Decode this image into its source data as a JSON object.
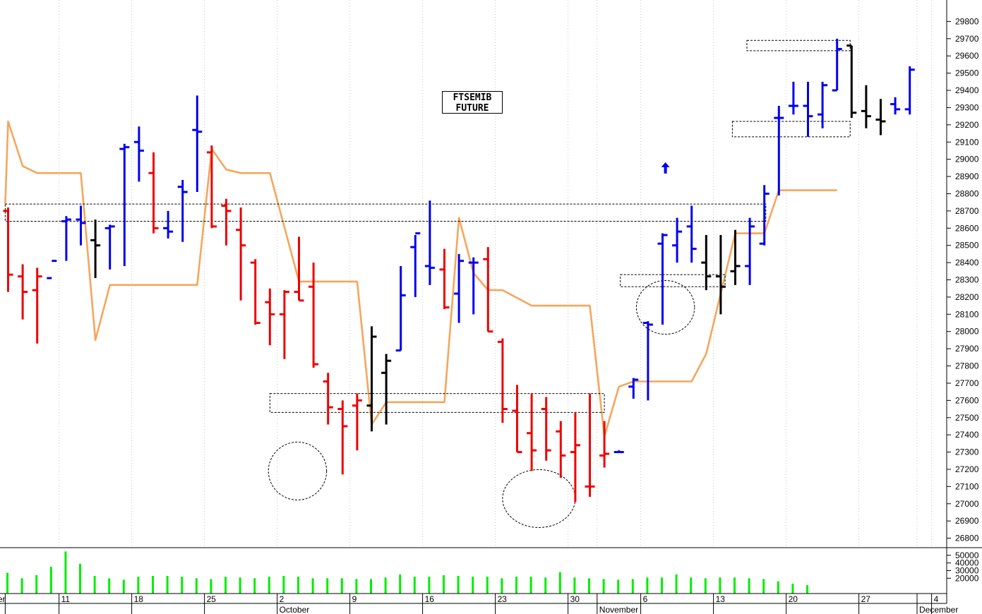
{
  "chart_data": {
    "type": "ohlc",
    "title": "FTSEMIB",
    "subtitle": "FUTURE",
    "price_axis": {
      "ylim": [
        26700,
        29900
      ],
      "ticks": [
        26800,
        26900,
        27000,
        27100,
        27200,
        27300,
        27400,
        27500,
        27600,
        27700,
        27800,
        27900,
        28000,
        28100,
        28200,
        28300,
        28400,
        28500,
        28600,
        28700,
        28800,
        28900,
        29000,
        29100,
        29200,
        29300,
        29400,
        29500,
        29600,
        29700,
        29800
      ],
      "grid": true
    },
    "volume_axis": {
      "ylim": [
        0,
        60000
      ],
      "ticks": [
        "20000",
        "30000",
        "40000",
        "50000"
      ]
    },
    "x_axis": {
      "labels": [
        {
          "text": "er",
          "slot": -0.2
        },
        {
          "text": "11",
          "slot": 3.5
        },
        {
          "text": "18",
          "slot": 8.5
        },
        {
          "text": "25",
          "slot": 13.5
        },
        {
          "text": "2",
          "slot": 18.5
        },
        {
          "text": "October",
          "slot": 18.5
        },
        {
          "text": "9",
          "slot": 23.5
        },
        {
          "text": "16",
          "slot": 28.5
        },
        {
          "text": "23",
          "slot": 33.5
        },
        {
          "text": "30",
          "slot": 38.5
        },
        {
          "text": "November",
          "slot": 40.5
        },
        {
          "text": "6",
          "slot": 43.5
        },
        {
          "text": "13",
          "slot": 48.5
        },
        {
          "text": "20",
          "slot": 53.5
        },
        {
          "text": "27",
          "slot": 58.5
        },
        {
          "text": "4",
          "slot": 63.5
        },
        {
          "text": "December",
          "slot": 62.5
        }
      ],
      "separators": [
        -0.2,
        3.5,
        8.5,
        13.5,
        18.5,
        23.5,
        28.5,
        33.5,
        38.5,
        40.5,
        43.5,
        48.5,
        53.5,
        58.5,
        62.5,
        63.5
      ]
    },
    "colors": {
      "up": "#0000ee",
      "down": "#ee0000",
      "neutral": "#000000",
      "stop_line": "#f5a65b",
      "volume": "#00ee00",
      "grid": "#c8c8c8",
      "annotation": "#000000"
    },
    "bars": [
      {
        "o": 28700,
        "h": 28720,
        "l": 28230,
        "c": 28330,
        "color": "red"
      },
      {
        "o": 28320,
        "h": 28390,
        "l": 28070,
        "c": 28230,
        "color": "red"
      },
      {
        "o": 28240,
        "h": 28370,
        "l": 27930,
        "c": 28320,
        "color": "red"
      },
      {
        "o": 28310,
        "h": 28410,
        "l": 28410,
        "c": 28410,
        "color": "blue"
      },
      {
        "o": 28640,
        "h": 28670,
        "l": 28410,
        "c": 28650,
        "color": "blue"
      },
      {
        "o": 28650,
        "h": 28730,
        "l": 28500,
        "c": 28630,
        "color": "blue"
      },
      {
        "o": 28530,
        "h": 28650,
        "l": 28310,
        "c": 28500,
        "color": "black"
      },
      {
        "o": 28600,
        "h": 28620,
        "l": 28360,
        "c": 28610,
        "color": "blue"
      },
      {
        "o": 29060,
        "h": 29090,
        "l": 28380,
        "c": 29070,
        "color": "blue"
      },
      {
        "o": 29100,
        "h": 29190,
        "l": 28870,
        "c": 29050,
        "color": "blue"
      },
      {
        "o": 28920,
        "h": 29040,
        "l": 28570,
        "c": 28600,
        "color": "red"
      },
      {
        "o": 28600,
        "h": 28700,
        "l": 28540,
        "c": 28580,
        "color": "blue"
      },
      {
        "o": 28840,
        "h": 28880,
        "l": 28520,
        "c": 28810,
        "color": "blue"
      },
      {
        "o": 29170,
        "h": 29370,
        "l": 28810,
        "c": 29160,
        "color": "blue"
      },
      {
        "o": 29040,
        "h": 29080,
        "l": 28600,
        "c": 28610,
        "color": "red"
      },
      {
        "o": 28730,
        "h": 28770,
        "l": 28500,
        "c": 28700,
        "color": "red"
      },
      {
        "o": 28590,
        "h": 28720,
        "l": 28180,
        "c": 28500,
        "color": "red"
      },
      {
        "o": 28400,
        "h": 28420,
        "l": 28040,
        "c": 28050,
        "color": "red"
      },
      {
        "o": 28170,
        "h": 28250,
        "l": 27920,
        "c": 28100,
        "color": "red"
      },
      {
        "o": 28100,
        "h": 28240,
        "l": 27840,
        "c": 28230,
        "color": "red"
      },
      {
        "o": 28230,
        "h": 28550,
        "l": 28180,
        "c": 28180,
        "color": "red"
      },
      {
        "o": 28260,
        "h": 28400,
        "l": 27790,
        "c": 27810,
        "color": "red"
      },
      {
        "o": 27710,
        "h": 27760,
        "l": 27460,
        "c": 27560,
        "color": "red"
      },
      {
        "o": 27550,
        "h": 27600,
        "l": 27170,
        "c": 27450,
        "color": "red"
      },
      {
        "o": 27570,
        "h": 27640,
        "l": 27310,
        "c": 27600,
        "color": "red"
      },
      {
        "o": 27570,
        "h": 28030,
        "l": 27420,
        "c": 27970,
        "color": "black"
      },
      {
        "o": 27760,
        "h": 27870,
        "l": 27460,
        "c": 27830,
        "color": "black"
      },
      {
        "o": 27890,
        "h": 28380,
        "l": 27890,
        "c": 28210,
        "color": "blue"
      },
      {
        "o": 28490,
        "h": 28560,
        "l": 28200,
        "c": 28570,
        "color": "blue"
      },
      {
        "o": 28380,
        "h": 28760,
        "l": 28270,
        "c": 28370,
        "color": "blue"
      },
      {
        "o": 28360,
        "h": 28480,
        "l": 28130,
        "c": 28140,
        "color": "red"
      },
      {
        "o": 28220,
        "h": 28450,
        "l": 28050,
        "c": 28410,
        "color": "blue"
      },
      {
        "o": 28400,
        "h": 28430,
        "l": 28100,
        "c": 28400,
        "color": "blue"
      },
      {
        "o": 28420,
        "h": 28490,
        "l": 28000,
        "c": 28000,
        "color": "red"
      },
      {
        "o": 27940,
        "h": 27960,
        "l": 27470,
        "c": 27550,
        "color": "red"
      },
      {
        "o": 27540,
        "h": 27690,
        "l": 27300,
        "c": 27300,
        "color": "red"
      },
      {
        "o": 27410,
        "h": 27640,
        "l": 27190,
        "c": 27310,
        "color": "red"
      },
      {
        "o": 27550,
        "h": 27620,
        "l": 27250,
        "c": 27310,
        "color": "red"
      },
      {
        "o": 27420,
        "h": 27480,
        "l": 27150,
        "c": 27280,
        "color": "red"
      },
      {
        "o": 27300,
        "h": 27530,
        "l": 27010,
        "c": 27340,
        "color": "red"
      },
      {
        "o": 27100,
        "h": 27640,
        "l": 27040,
        "c": 27100,
        "color": "red"
      },
      {
        "o": 27280,
        "h": 27480,
        "l": 27210,
        "c": 27290,
        "color": "red"
      },
      {
        "o": 27300,
        "h": 27310,
        "l": 27300,
        "c": 27300,
        "color": "blue"
      },
      {
        "o": 27680,
        "h": 27730,
        "l": 27610,
        "c": 27720,
        "color": "blue"
      },
      {
        "o": 28050,
        "h": 28060,
        "l": 27600,
        "c": 28040,
        "color": "blue"
      },
      {
        "o": 28510,
        "h": 28570,
        "l": 28040,
        "c": 28560,
        "color": "blue"
      },
      {
        "o": 28500,
        "h": 28660,
        "l": 28400,
        "c": 28580,
        "color": "blue"
      },
      {
        "o": 28610,
        "h": 28730,
        "l": 28400,
        "c": 28480,
        "color": "blue"
      },
      {
        "o": 28400,
        "h": 28560,
        "l": 28240,
        "c": 28320,
        "color": "black"
      },
      {
        "o": 28320,
        "h": 28560,
        "l": 28100,
        "c": 28260,
        "color": "black"
      },
      {
        "o": 28350,
        "h": 28590,
        "l": 28270,
        "c": 28380,
        "color": "black"
      },
      {
        "o": 28380,
        "h": 28660,
        "l": 28270,
        "c": 28610,
        "color": "blue"
      },
      {
        "o": 28510,
        "h": 28850,
        "l": 28500,
        "c": 28800,
        "color": "blue"
      },
      {
        "o": 29240,
        "h": 29310,
        "l": 28790,
        "c": 29240,
        "color": "blue"
      },
      {
        "o": 29310,
        "h": 29450,
        "l": 29260,
        "c": 29310,
        "color": "blue"
      },
      {
        "o": 29310,
        "h": 29450,
        "l": 29130,
        "c": 29250,
        "color": "blue"
      },
      {
        "o": 29260,
        "h": 29450,
        "l": 29180,
        "c": 29430,
        "color": "blue"
      },
      {
        "o": 29400,
        "h": 29700,
        "l": 29400,
        "c": 29640,
        "color": "blue"
      },
      {
        "o": 29660,
        "h": 29660,
        "l": 29240,
        "c": 29270,
        "color": "black"
      },
      {
        "o": 29280,
        "h": 29430,
        "l": 29180,
        "c": 29250,
        "color": "black"
      },
      {
        "o": 29230,
        "h": 29350,
        "l": 29140,
        "c": 29220,
        "color": "black"
      },
      {
        "o": 29320,
        "h": 29360,
        "l": 29260,
        "c": 29290,
        "color": "blue"
      },
      {
        "o": 29290,
        "h": 29540,
        "l": 29260,
        "c": 29520,
        "color": "blue"
      }
    ],
    "stop_line": [
      {
        "slot": -0.2,
        "v": 28740
      },
      {
        "slot": 0,
        "v": 29220
      },
      {
        "slot": 1,
        "v": 28960
      },
      {
        "slot": 2,
        "v": 28920
      },
      {
        "slot": 5,
        "v": 28920
      },
      {
        "slot": 6,
        "v": 27950
      },
      {
        "slot": 7,
        "v": 28270
      },
      {
        "slot": 13,
        "v": 28270
      },
      {
        "slot": 14,
        "v": 29060
      },
      {
        "slot": 15,
        "v": 28940
      },
      {
        "slot": 16,
        "v": 28920
      },
      {
        "slot": 18,
        "v": 28920
      },
      {
        "slot": 20,
        "v": 28290
      },
      {
        "slot": 24,
        "v": 28290
      },
      {
        "slot": 25,
        "v": 27460
      },
      {
        "slot": 26,
        "v": 27590
      },
      {
        "slot": 30,
        "v": 27590
      },
      {
        "slot": 31,
        "v": 28660
      },
      {
        "slot": 32,
        "v": 28340
      },
      {
        "slot": 33,
        "v": 28240
      },
      {
        "slot": 34,
        "v": 28240
      },
      {
        "slot": 36,
        "v": 28150
      },
      {
        "slot": 40,
        "v": 28150
      },
      {
        "slot": 41,
        "v": 27390
      },
      {
        "slot": 42,
        "v": 27680
      },
      {
        "slot": 43,
        "v": 27710
      },
      {
        "slot": 47,
        "v": 27710
      },
      {
        "slot": 48,
        "v": 27870
      },
      {
        "slot": 50,
        "v": 28570
      },
      {
        "slot": 52,
        "v": 28570
      },
      {
        "slot": 53,
        "v": 28820
      },
      {
        "slot": 57,
        "v": 28820
      }
    ],
    "volume": [
      27000,
      20000,
      24000,
      35000,
      55000,
      39000,
      23000,
      20000,
      18000,
      22000,
      23000,
      23000,
      22000,
      20000,
      19000,
      22000,
      21000,
      20000,
      22000,
      23000,
      22000,
      20000,
      20000,
      20000,
      19000,
      19000,
      21000,
      25000,
      22000,
      22000,
      24000,
      23000,
      22000,
      22000,
      20000,
      22000,
      22000,
      21000,
      28000,
      21000,
      20000,
      19000,
      18000,
      19000,
      21000,
      21000,
      25000,
      21000,
      20000,
      21000,
      21000,
      20000,
      19000,
      16000,
      13000,
      11000
    ],
    "boxes": [
      {
        "from": -0.2,
        "to": 52.1,
        "top": 28740,
        "bottom": 28640
      },
      {
        "from": 18.0,
        "to": 41.0,
        "top": 27640,
        "bottom": 27530
      },
      {
        "from": 42.1,
        "to": 49.3,
        "top": 28330,
        "bottom": 28260
      },
      {
        "from": 49.8,
        "to": 57.9,
        "top": 29220,
        "bottom": 29130
      },
      {
        "from": 50.8,
        "to": 57.9,
        "top": 29690,
        "bottom": 29630
      }
    ],
    "ellipses": [
      {
        "slot": 19.9,
        "v": 27190,
        "rx": 2.0,
        "rv": 70
      },
      {
        "slot": 36.5,
        "v": 27030,
        "rx": 2.5,
        "rv": 70
      },
      {
        "slot": 45.2,
        "v": 28140,
        "rx": 2.0,
        "rv": 65
      }
    ],
    "arrow": {
      "slot": 45.2,
      "v": 28950,
      "direction": "up"
    }
  }
}
